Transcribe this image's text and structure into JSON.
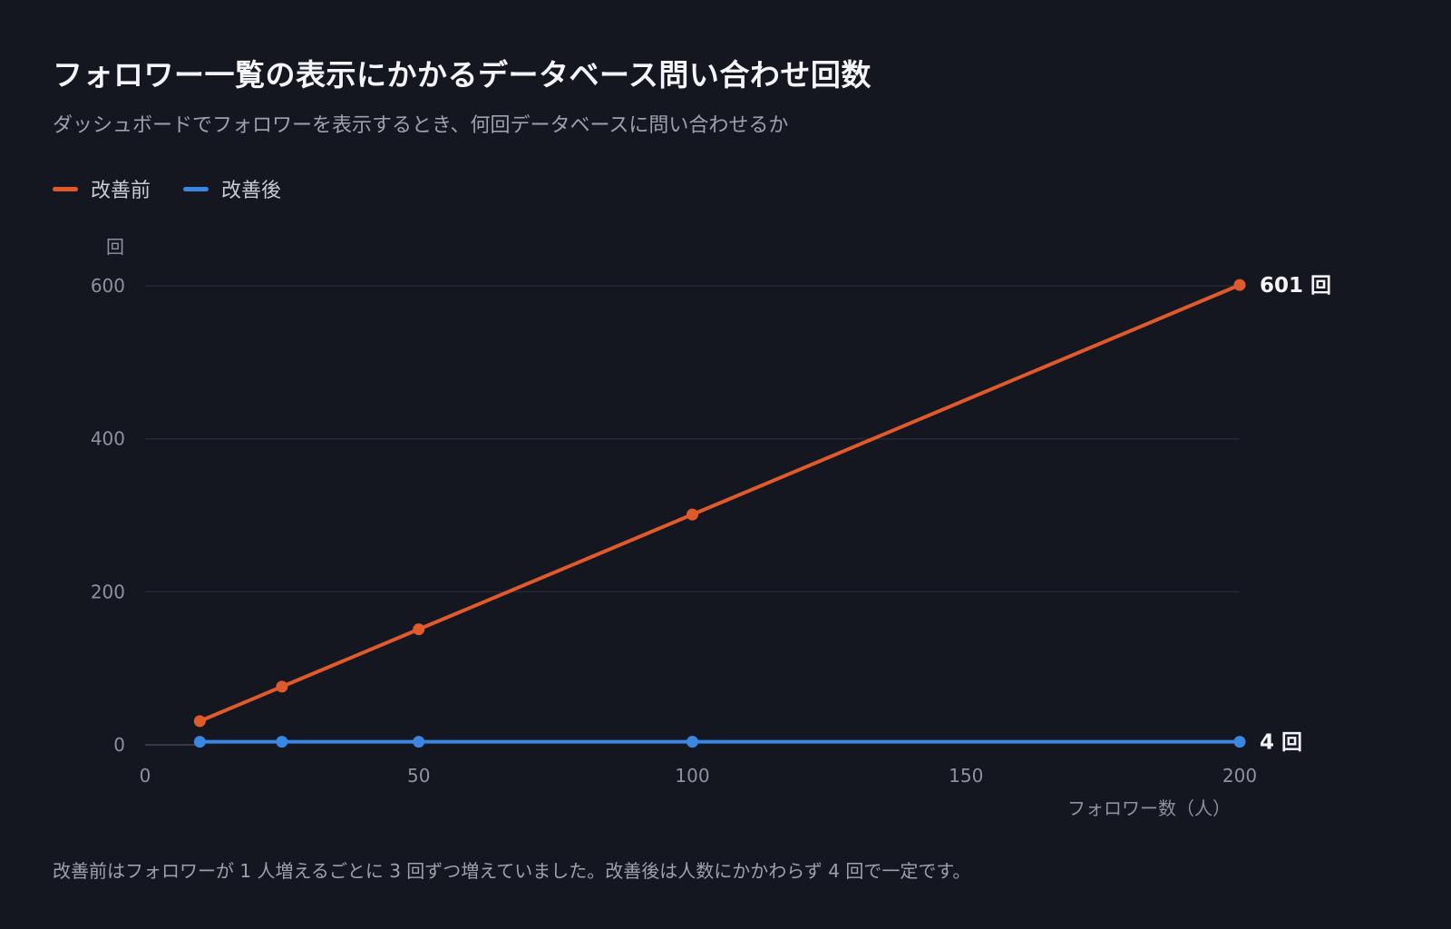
{
  "header": {
    "title": "フォロワー一覧の表示にかかるデータベース問い合わせ回数",
    "subtitle": "ダッシュボードでフォロワーを表示するとき、何回データベースに問い合わせるか"
  },
  "colors": {
    "background": "#141720",
    "before": "#e05a2b",
    "after": "#3a86e0",
    "grid": "#2a2e3a",
    "tick": "#8e929c"
  },
  "chart_data": {
    "type": "line",
    "xlabel": "フォロワー数（人）",
    "ylabel": "回",
    "xlim": [
      0,
      200
    ],
    "ylim": [
      0,
      600
    ],
    "x_ticks": [
      0,
      50,
      100,
      150,
      200
    ],
    "y_ticks": [
      0,
      200,
      400,
      600
    ],
    "grid": true,
    "legend_position": "top-left",
    "series": [
      {
        "name": "改善前",
        "color": "#e05a2b",
        "x": [
          10,
          25,
          50,
          100,
          200
        ],
        "y": [
          31,
          76,
          151,
          301,
          601
        ],
        "end_label": "601 回"
      },
      {
        "name": "改善後",
        "color": "#3a86e0",
        "x": [
          10,
          25,
          50,
          100,
          200
        ],
        "y": [
          4,
          4,
          4,
          4,
          4
        ],
        "end_label": "4 回"
      }
    ]
  },
  "footer": {
    "note": "改善前はフォロワーが 1 人増えるごとに 3 回ずつ増えていました。改善後は人数にかかわらず 4 回で一定です。"
  }
}
